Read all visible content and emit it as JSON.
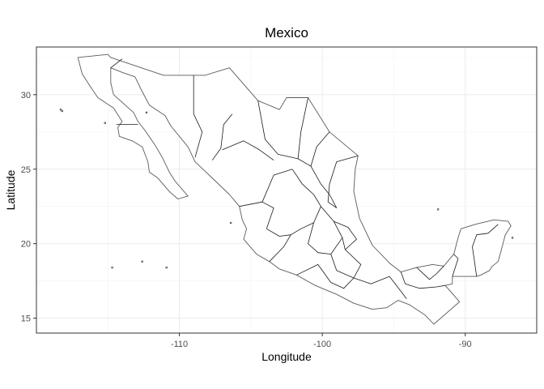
{
  "map": {
    "title": "Mexico",
    "xlabel": "Longitude",
    "ylabel": "Latitude",
    "xlim": [
      -120,
      -85
    ],
    "ylim": [
      14,
      33.2
    ],
    "x_ticks": [
      -110,
      -100,
      -90
    ],
    "y_ticks": [
      15,
      20,
      25,
      30
    ],
    "x_tick_labels": [
      "-110",
      "-100",
      "-90"
    ],
    "y_tick_labels": [
      "15",
      "20",
      "25",
      "30"
    ],
    "theme": "black-and-white, grey gridlines",
    "colors": {
      "fill": "#ffffff",
      "country_outline": "#5a5a5a",
      "state_borders": "#1a1a1a",
      "grid": "#ebebeb"
    },
    "country_outline": [
      [
        -117.1,
        32.5
      ],
      [
        -115.0,
        32.7
      ],
      [
        -114.8,
        32.5
      ],
      [
        -111.1,
        31.3
      ],
      [
        -108.2,
        31.3
      ],
      [
        -106.5,
        31.8
      ],
      [
        -104.5,
        29.6
      ],
      [
        -103.0,
        29.0
      ],
      [
        -102.5,
        29.8
      ],
      [
        -101.0,
        29.8
      ],
      [
        -99.5,
        27.5
      ],
      [
        -97.5,
        25.9
      ],
      [
        -97.7,
        25.0
      ],
      [
        -97.8,
        23.5
      ],
      [
        -97.4,
        21.7
      ],
      [
        -96.5,
        19.9
      ],
      [
        -95.3,
        18.7
      ],
      [
        -94.5,
        18.1
      ],
      [
        -93.4,
        18.4
      ],
      [
        -92.3,
        18.6
      ],
      [
        -91.5,
        18.5
      ],
      [
        -90.8,
        19.3
      ],
      [
        -90.5,
        20.4
      ],
      [
        -90.3,
        21.0
      ],
      [
        -89.3,
        21.3
      ],
      [
        -88.0,
        21.6
      ],
      [
        -87.0,
        21.5
      ],
      [
        -86.8,
        21.2
      ],
      [
        -87.2,
        20.6
      ],
      [
        -87.5,
        19.5
      ],
      [
        -87.7,
        18.8
      ],
      [
        -88.1,
        18.5
      ],
      [
        -88.3,
        18.2
      ],
      [
        -88.9,
        17.9
      ],
      [
        -89.2,
        17.8
      ],
      [
        -90.9,
        17.8
      ],
      [
        -90.9,
        17.3
      ],
      [
        -91.4,
        17.2
      ],
      [
        -90.4,
        16.1
      ],
      [
        -92.2,
        14.6
      ],
      [
        -92.8,
        15.2
      ],
      [
        -93.9,
        15.9
      ],
      [
        -94.7,
        16.2
      ],
      [
        -95.5,
        15.7
      ],
      [
        -96.5,
        15.6
      ],
      [
        -97.8,
        16.0
      ],
      [
        -99.0,
        16.6
      ],
      [
        -100.5,
        17.2
      ],
      [
        -101.8,
        17.9
      ],
      [
        -103.0,
        18.3
      ],
      [
        -103.7,
        18.8
      ],
      [
        -104.6,
        19.3
      ],
      [
        -105.5,
        20.3
      ],
      [
        -105.3,
        21.0
      ],
      [
        -105.6,
        21.6
      ],
      [
        -105.8,
        22.5
      ],
      [
        -106.5,
        23.3
      ],
      [
        -107.8,
        24.5
      ],
      [
        -108.9,
        25.5
      ],
      [
        -109.4,
        26.5
      ],
      [
        -110.6,
        27.9
      ],
      [
        -111.0,
        28.6
      ],
      [
        -112.1,
        29.3
      ],
      [
        -112.7,
        30.4
      ],
      [
        -113.1,
        31.2
      ],
      [
        -114.0,
        31.5
      ],
      [
        -114.8,
        31.8
      ],
      [
        -114.8,
        30.8
      ],
      [
        -114.6,
        30.0
      ],
      [
        -113.2,
        28.8
      ],
      [
        -112.9,
        28.2
      ],
      [
        -112.4,
        27.6
      ],
      [
        -111.7,
        26.6
      ],
      [
        -111.2,
        25.8
      ],
      [
        -110.7,
        24.8
      ],
      [
        -110.3,
        24.2
      ],
      [
        -109.4,
        23.2
      ],
      [
        -110.1,
        23.0
      ],
      [
        -110.7,
        23.5
      ],
      [
        -111.5,
        24.4
      ],
      [
        -112.1,
        24.8
      ],
      [
        -112.2,
        25.5
      ],
      [
        -112.6,
        26.5
      ],
      [
        -113.3,
        26.9
      ],
      [
        -114.2,
        27.2
      ],
      [
        -114.3,
        27.8
      ],
      [
        -114.0,
        28.2
      ],
      [
        -114.6,
        29.1
      ],
      [
        -115.7,
        29.8
      ],
      [
        -116.2,
        30.5
      ],
      [
        -116.8,
        31.4
      ],
      [
        -117.1,
        32.5
      ]
    ],
    "state_borders": [
      [
        [
          -114.8,
          31.8
        ],
        [
          -114.0,
          32.4
        ]
      ],
      [
        [
          -112.9,
          28.0
        ],
        [
          -114.4,
          28.0
        ]
      ],
      [
        [
          -109.0,
          31.3
        ],
        [
          -109.0,
          28.7
        ],
        [
          -108.4,
          27.5
        ],
        [
          -108.9,
          25.8
        ]
      ],
      [
        [
          -106.3,
          28.7
        ],
        [
          -106.9,
          28.0
        ],
        [
          -107.1,
          26.4
        ],
        [
          -107.7,
          25.6
        ]
      ],
      [
        [
          -104.5,
          29.6
        ],
        [
          -104.0,
          27.0
        ],
        [
          -103.1,
          26.0
        ],
        [
          -101.7,
          25.7
        ]
      ],
      [
        [
          -107.0,
          26.3
        ],
        [
          -105.5,
          26.9
        ],
        [
          -104.4,
          26.3
        ],
        [
          -103.4,
          25.6
        ]
      ],
      [
        [
          -105.8,
          22.5
        ],
        [
          -104.2,
          22.8
        ],
        [
          -103.4,
          22.4
        ],
        [
          -103.9,
          21.0
        ]
      ],
      [
        [
          -102.1,
          25.0
        ],
        [
          -103.4,
          24.6
        ],
        [
          -104.2,
          22.8
        ]
      ],
      [
        [
          -102.1,
          25.0
        ],
        [
          -101.4,
          24.0
        ],
        [
          -100.6,
          23.3
        ],
        [
          -100.1,
          22.5
        ]
      ],
      [
        [
          -99.5,
          27.5
        ],
        [
          -100.4,
          26.5
        ],
        [
          -100.8,
          25.2
        ],
        [
          -100.1,
          24.0
        ],
        [
          -99.5,
          23.3
        ],
        [
          -99.0,
          22.4
        ]
      ],
      [
        [
          -101.0,
          29.8
        ],
        [
          -101.5,
          27.5
        ],
        [
          -101.7,
          25.7
        ],
        [
          -100.8,
          25.2
        ]
      ],
      [
        [
          -97.5,
          25.9
        ],
        [
          -99.0,
          25.5
        ],
        [
          -99.5,
          24.0
        ],
        [
          -99.6,
          22.8
        ],
        [
          -99.0,
          22.4
        ]
      ],
      [
        [
          -103.9,
          21.0
        ],
        [
          -103.0,
          20.5
        ],
        [
          -102.2,
          20.6
        ],
        [
          -101.5,
          21.0
        ],
        [
          -100.6,
          21.4
        ]
      ],
      [
        [
          -102.2,
          20.6
        ],
        [
          -102.7,
          19.8
        ],
        [
          -103.7,
          18.8
        ]
      ],
      [
        [
          -100.6,
          21.4
        ],
        [
          -100.1,
          22.5
        ],
        [
          -99.2,
          21.5
        ],
        [
          -98.6,
          20.4
        ],
        [
          -99.4,
          19.3
        ],
        [
          -100.3,
          19.4
        ],
        [
          -101.0,
          20.0
        ],
        [
          -100.6,
          21.4
        ]
      ],
      [
        [
          -99.2,
          21.5
        ],
        [
          -98.2,
          21.1
        ],
        [
          -97.6,
          20.3
        ],
        [
          -98.4,
          19.6
        ],
        [
          -98.6,
          20.4
        ]
      ],
      [
        [
          -98.4,
          19.6
        ],
        [
          -97.3,
          18.6
        ],
        [
          -97.8,
          17.7
        ],
        [
          -99.0,
          18.2
        ],
        [
          -99.4,
          19.3
        ]
      ],
      [
        [
          -97.8,
          17.7
        ],
        [
          -98.5,
          17.0
        ],
        [
          -99.4,
          17.4
        ],
        [
          -100.3,
          18.6
        ],
        [
          -101.8,
          17.9
        ]
      ],
      [
        [
          -97.8,
          17.7
        ],
        [
          -96.6,
          17.3
        ],
        [
          -95.3,
          17.8
        ],
        [
          -94.5,
          16.8
        ],
        [
          -94.1,
          16.3
        ]
      ],
      [
        [
          -94.5,
          18.1
        ],
        [
          -94.2,
          17.3
        ],
        [
          -93.2,
          17.0
        ],
        [
          -92.0,
          17.1
        ],
        [
          -91.4,
          17.2
        ]
      ],
      [
        [
          -91.5,
          18.5
        ],
        [
          -92.0,
          18.0
        ],
        [
          -92.5,
          17.6
        ],
        [
          -93.4,
          18.4
        ]
      ],
      [
        [
          -90.9,
          17.8
        ],
        [
          -90.5,
          19.0
        ],
        [
          -90.8,
          19.3
        ]
      ],
      [
        [
          -89.2,
          17.8
        ],
        [
          -89.5,
          19.8
        ],
        [
          -89.2,
          20.6
        ],
        [
          -88.4,
          20.7
        ],
        [
          -87.7,
          21.3
        ]
      ]
    ],
    "islets": [
      [
        -118.3,
        29.0
      ],
      [
        -115.2,
        28.1
      ],
      [
        -118.2,
        28.9
      ],
      [
        -112.6,
        18.8
      ],
      [
        -114.7,
        18.4
      ],
      [
        -110.9,
        18.4
      ],
      [
        -91.9,
        22.3
      ],
      [
        -86.7,
        20.4
      ],
      [
        -106.4,
        21.4
      ],
      [
        -112.3,
        28.8
      ]
    ]
  }
}
